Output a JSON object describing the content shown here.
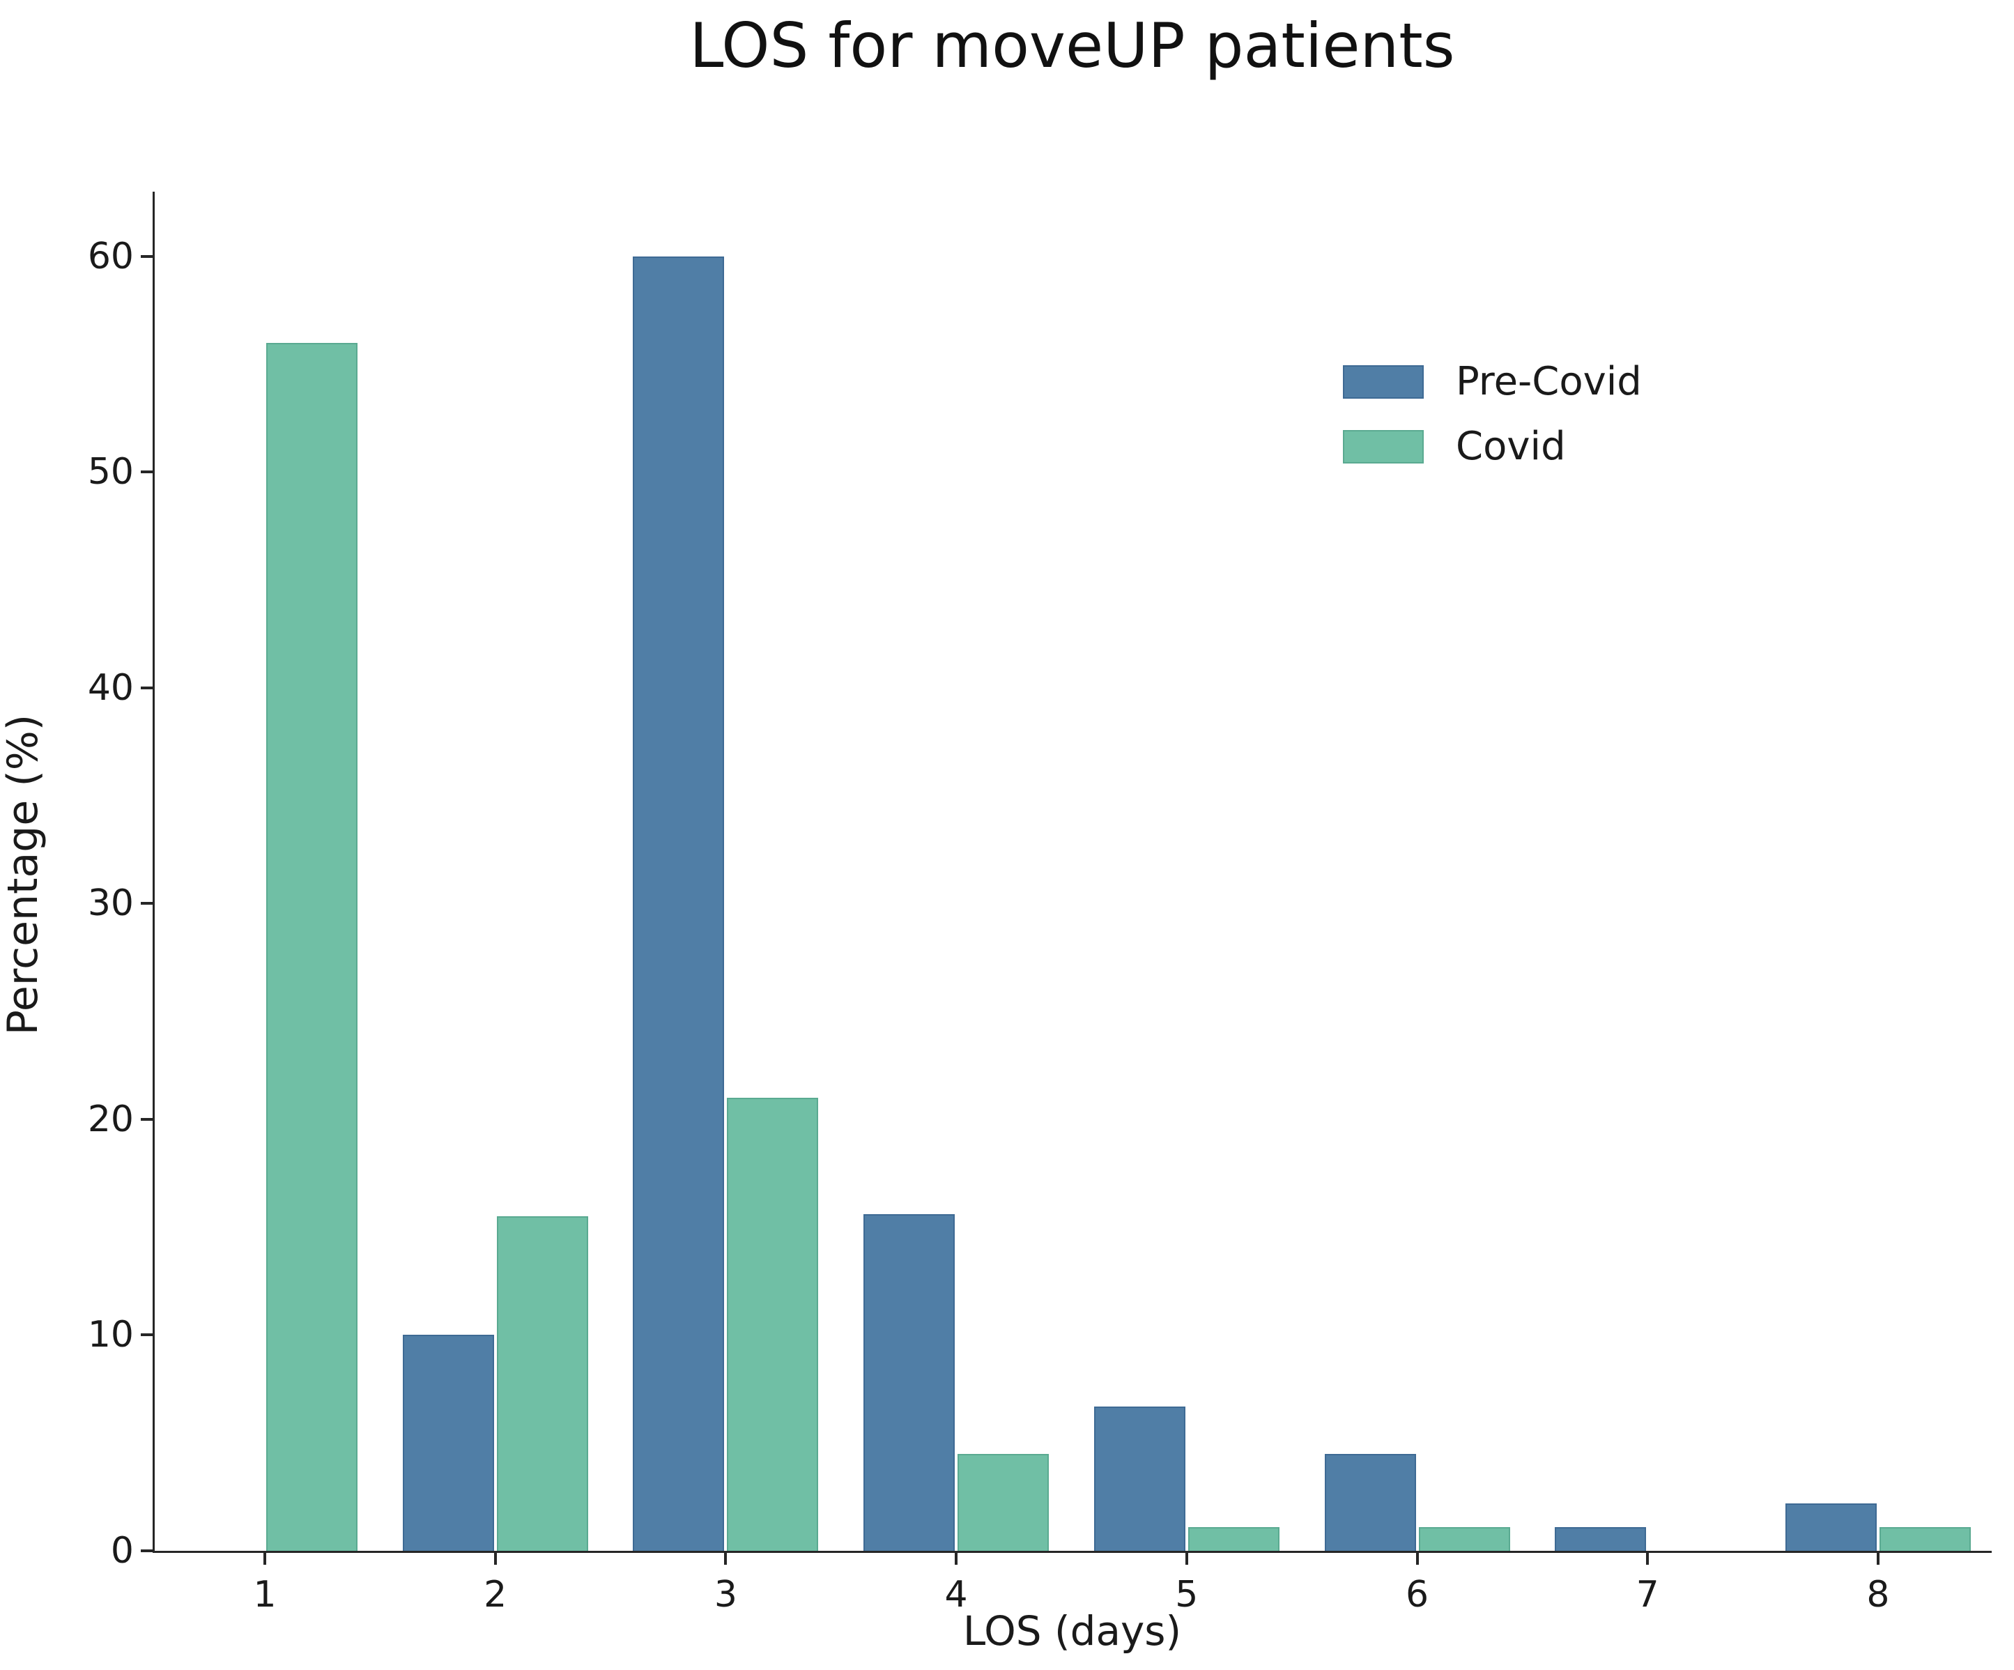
{
  "figure": {
    "background": "#ffffff"
  },
  "chart_data": {
    "type": "bar",
    "title": "LOS for moveUP patients",
    "xlabel": "LOS (days)",
    "ylabel": "Percentage (%)",
    "categories": [
      "1",
      "2",
      "3",
      "4",
      "5",
      "6",
      "7",
      "8"
    ],
    "series": [
      {
        "name": "Pre-Covid",
        "color": "#507EA6",
        "edge_color": "#3E6A94",
        "values": [
          0,
          10,
          60,
          15.6,
          6.7,
          4.5,
          1.1,
          2.2
        ]
      },
      {
        "name": "Covid",
        "color": "#70BFA5",
        "edge_color": "#5AAA91",
        "values": [
          56,
          15.5,
          21,
          4.5,
          1.1,
          1.1,
          0,
          1.1
        ]
      }
    ],
    "ylim": [
      0,
      63
    ],
    "yticks": [
      0,
      10,
      20,
      30,
      40,
      50,
      60
    ],
    "legend_position": "upper right",
    "grid": false,
    "axis_color": "#262626",
    "text_color": "#1a1a1a"
  }
}
